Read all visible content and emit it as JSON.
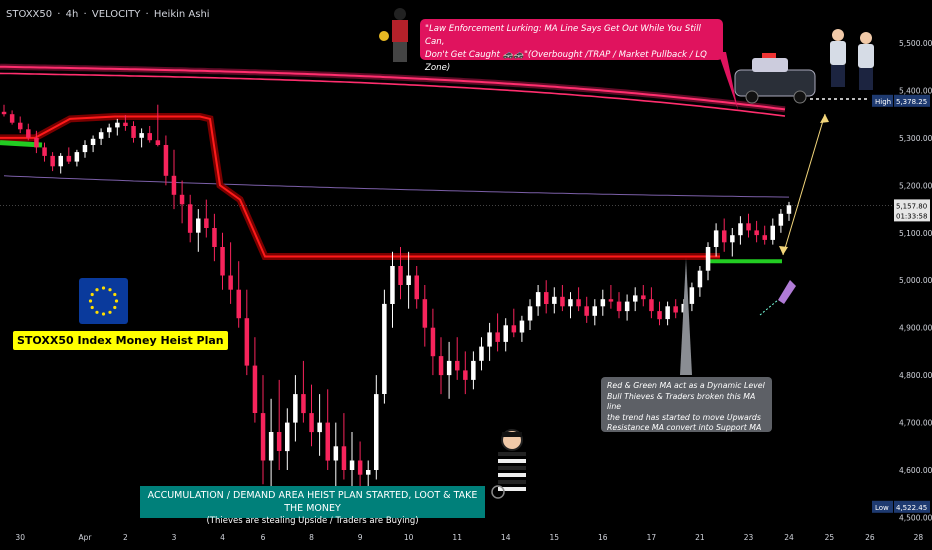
{
  "header": {
    "symbol": "STOXX50",
    "interval": "4h",
    "broker": "VELOCITY",
    "chart_style": "Heikin Ashi",
    "separator": " · "
  },
  "colors": {
    "background": "#000000",
    "bull_candle": "#ffffff",
    "bear_candle": "#f7245c",
    "ma_red": "#ff1a1a",
    "ma_green": "#22cc22",
    "pink_ribbon": "#ff2e6e",
    "purple_ma": "#7b5fa8",
    "axis_text": "#d1d4dc"
  },
  "annotations": {
    "pink_line1": "\"Law Enforcement Lurking: MA Line Says Get Out While You Still Can,",
    "pink_line2": "Don't Get Caught 🚓🚓\"(Overbought /TRAP / Market Pullback / LQ Zone)",
    "grey_line1": "Red & Green MA act as a Dynamic Level",
    "grey_line2": "Bull Thieves & Traders broken this MA line",
    "grey_line3": "the trend has started to move Upwards",
    "grey_line4": "Resistance MA convert into Support MA",
    "teal_line1": "ACCUMULATION / DEMAND AREA HEIST PLAN STARTED, LOOT & TAKE THE MONEY",
    "teal_line2": "(Thieves are stealing Upside / Traders are Buying)",
    "plan_label": "STOXX50 Index Money Heist Plan"
  },
  "chart_data": {
    "type": "candlestick",
    "title": "",
    "xlabel": "",
    "ylabel": "",
    "ylim": [
      4500,
      5600
    ],
    "grid": false,
    "y_ticks": [
      4500,
      4600,
      4700,
      4800,
      4900,
      5000,
      5100,
      5200,
      5300,
      5400,
      5500
    ],
    "y_tick_labels": [
      "4,500.00",
      "4,600.00",
      "4,700.00",
      "4,800.00",
      "4,900.00",
      "5,000.00",
      "5,100.00",
      "5,200.00",
      "5,300.00",
      "5,400.00",
      "5,500.00"
    ],
    "x_tick_labels": [
      "30",
      "Apr",
      "2",
      "3",
      "4",
      "6",
      "8",
      "9",
      "10",
      "11",
      "14",
      "15",
      "16",
      "17",
      "21",
      "23",
      "24",
      "25",
      "26",
      "28"
    ],
    "x_tick_index": [
      2,
      10,
      15,
      21,
      27,
      32,
      38,
      44,
      50,
      56,
      62,
      68,
      74,
      80,
      86,
      92,
      97,
      102,
      107,
      113
    ],
    "price_tags": [
      {
        "label": "High",
        "value": 5378.25,
        "text": "5,378.25"
      },
      {
        "label": "Low",
        "value": 4522.45,
        "text": "4,522.45"
      }
    ],
    "current_price": {
      "text": "5,157.80",
      "countdown": "01:33:58",
      "value": 5157.8
    },
    "candles": [
      [
        5355,
        5370,
        5345,
        5350
      ],
      [
        5350,
        5358,
        5328,
        5332
      ],
      [
        5332,
        5345,
        5310,
        5318
      ],
      [
        5318,
        5330,
        5295,
        5300
      ],
      [
        5300,
        5315,
        5268,
        5280
      ],
      [
        5280,
        5290,
        5250,
        5262
      ],
      [
        5262,
        5270,
        5230,
        5240
      ],
      [
        5240,
        5268,
        5225,
        5262
      ],
      [
        5262,
        5280,
        5245,
        5250
      ],
      [
        5250,
        5275,
        5240,
        5270
      ],
      [
        5270,
        5295,
        5258,
        5285
      ],
      [
        5285,
        5305,
        5270,
        5298
      ],
      [
        5298,
        5320,
        5285,
        5312
      ],
      [
        5312,
        5330,
        5300,
        5322
      ],
      [
        5322,
        5340,
        5305,
        5332
      ],
      [
        5332,
        5348,
        5315,
        5325
      ],
      [
        5325,
        5335,
        5290,
        5300
      ],
      [
        5300,
        5320,
        5280,
        5310
      ],
      [
        5310,
        5325,
        5290,
        5295
      ],
      [
        5295,
        5370,
        5282,
        5285
      ],
      [
        5285,
        5305,
        5200,
        5220
      ],
      [
        5220,
        5275,
        5150,
        5180
      ],
      [
        5180,
        5210,
        5120,
        5160
      ],
      [
        5160,
        5180,
        5080,
        5100
      ],
      [
        5100,
        5150,
        5060,
        5130
      ],
      [
        5130,
        5170,
        5090,
        5110
      ],
      [
        5110,
        5140,
        5040,
        5070
      ],
      [
        5070,
        5100,
        4980,
        5010
      ],
      [
        5010,
        5080,
        4950,
        4980
      ],
      [
        4980,
        5040,
        4900,
        4920
      ],
      [
        4920,
        4980,
        4800,
        4820
      ],
      [
        4820,
        4880,
        4700,
        4720
      ],
      [
        4720,
        4800,
        4570,
        4620
      ],
      [
        4620,
        4750,
        4560,
        4680
      ],
      [
        4680,
        4790,
        4600,
        4640
      ],
      [
        4640,
        4730,
        4600,
        4700
      ],
      [
        4700,
        4800,
        4660,
        4760
      ],
      [
        4760,
        4830,
        4700,
        4720
      ],
      [
        4720,
        4780,
        4650,
        4680
      ],
      [
        4680,
        4760,
        4630,
        4700
      ],
      [
        4700,
        4770,
        4600,
        4620
      ],
      [
        4620,
        4700,
        4560,
        4650
      ],
      [
        4650,
        4720,
        4580,
        4600
      ],
      [
        4600,
        4680,
        4550,
        4620
      ],
      [
        4620,
        4660,
        4560,
        4590
      ],
      [
        4590,
        4620,
        4540,
        4600
      ],
      [
        4600,
        4800,
        4580,
        4760
      ],
      [
        4760,
        4980,
        4740,
        4950
      ],
      [
        4950,
        5060,
        4900,
        5030
      ],
      [
        5030,
        5070,
        4960,
        4990
      ],
      [
        4990,
        5060,
        4940,
        5010
      ],
      [
        5010,
        5030,
        4940,
        4960
      ],
      [
        4960,
        4990,
        4860,
        4900
      ],
      [
        4900,
        4940,
        4800,
        4840
      ],
      [
        4840,
        4880,
        4760,
        4800
      ],
      [
        4800,
        4870,
        4750,
        4830
      ],
      [
        4830,
        4880,
        4790,
        4810
      ],
      [
        4810,
        4850,
        4760,
        4790
      ],
      [
        4790,
        4850,
        4770,
        4830
      ],
      [
        4830,
        4880,
        4810,
        4860
      ],
      [
        4860,
        4910,
        4830,
        4890
      ],
      [
        4890,
        4930,
        4850,
        4870
      ],
      [
        4870,
        4920,
        4850,
        4905
      ],
      [
        4905,
        4940,
        4880,
        4890
      ],
      [
        4890,
        4925,
        4870,
        4915
      ],
      [
        4915,
        4960,
        4895,
        4945
      ],
      [
        4945,
        4990,
        4925,
        4975
      ],
      [
        4975,
        5000,
        4930,
        4950
      ],
      [
        4950,
        4985,
        4930,
        4965
      ],
      [
        4965,
        4990,
        4935,
        4945
      ],
      [
        4945,
        4975,
        4920,
        4960
      ],
      [
        4960,
        4985,
        4935,
        4945
      ],
      [
        4945,
        4965,
        4910,
        4925
      ],
      [
        4925,
        4960,
        4905,
        4945
      ],
      [
        4945,
        4980,
        4925,
        4960
      ],
      [
        4960,
        4990,
        4940,
        4955
      ],
      [
        4955,
        4975,
        4920,
        4935
      ],
      [
        4935,
        4970,
        4915,
        4955
      ],
      [
        4955,
        4985,
        4935,
        4968
      ],
      [
        4968,
        4990,
        4945,
        4960
      ],
      [
        4960,
        4985,
        4920,
        4935
      ],
      [
        4935,
        4955,
        4905,
        4918
      ],
      [
        4918,
        4955,
        4905,
        4945
      ],
      [
        4945,
        4960,
        4920,
        4932
      ],
      [
        4932,
        4960,
        4915,
        4950
      ],
      [
        4950,
        4995,
        4935,
        4985
      ],
      [
        4985,
        5030,
        4965,
        5020
      ],
      [
        5020,
        5080,
        5000,
        5070
      ],
      [
        5070,
        5120,
        5050,
        5105
      ],
      [
        5105,
        5130,
        5060,
        5080
      ],
      [
        5080,
        5110,
        5050,
        5095
      ],
      [
        5095,
        5135,
        5075,
        5120
      ],
      [
        5120,
        5140,
        5090,
        5105
      ],
      [
        5105,
        5125,
        5080,
        5095
      ],
      [
        5095,
        5115,
        5075,
        5085
      ],
      [
        5085,
        5130,
        5075,
        5115
      ],
      [
        5115,
        5150,
        5100,
        5140
      ],
      [
        5140,
        5165,
        5125,
        5158
      ]
    ]
  }
}
